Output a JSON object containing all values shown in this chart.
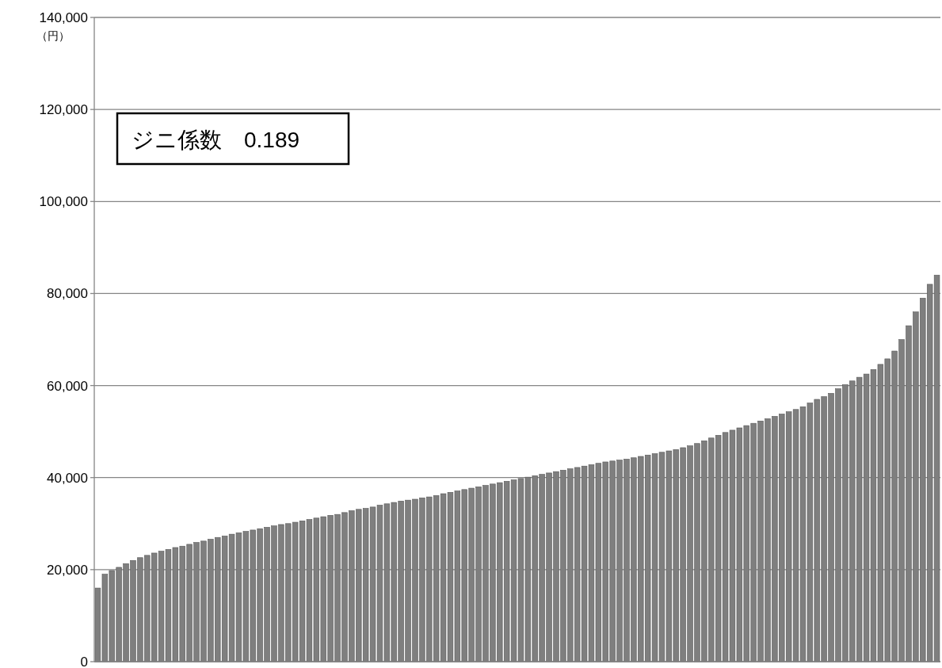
{
  "chart_data": {
    "type": "bar",
    "ylabel": "（円）",
    "annotations": [
      "ジニ係数　0.189"
    ],
    "categories": [
      null,
      null,
      null,
      null,
      null,
      null,
      null,
      null,
      null,
      null,
      null,
      null,
      null,
      null,
      null,
      null,
      null,
      null,
      null,
      null,
      null,
      null,
      null,
      null,
      null,
      null,
      null,
      null,
      null,
      null,
      null,
      null,
      null,
      null,
      null,
      null,
      null,
      null,
      null,
      null,
      null,
      null,
      null,
      null,
      null,
      null,
      null,
      null,
      null,
      null,
      null,
      null,
      null,
      null,
      null,
      null,
      null,
      null,
      null,
      null,
      null,
      null,
      null,
      null,
      null,
      null,
      null,
      null,
      null,
      null,
      null,
      null,
      null,
      null,
      null,
      null,
      null,
      null,
      null,
      null,
      null,
      null,
      null,
      null,
      null,
      null,
      null,
      null,
      null,
      null,
      null,
      null,
      null,
      null,
      null,
      null,
      null,
      null,
      null,
      null,
      null,
      null,
      null,
      null,
      null,
      null,
      null,
      null,
      null,
      null,
      null,
      null,
      null,
      null,
      null,
      null,
      null,
      null,
      null,
      null
    ],
    "values": [
      16000,
      19000,
      19800,
      20500,
      21300,
      22000,
      22600,
      23100,
      23600,
      24000,
      24400,
      24800,
      25100,
      25500,
      25900,
      26200,
      26600,
      27000,
      27300,
      27700,
      28000,
      28300,
      28600,
      28900,
      29200,
      29500,
      29800,
      30000,
      30300,
      30600,
      30900,
      31200,
      31500,
      31800,
      32000,
      32400,
      32800,
      33100,
      33300,
      33600,
      34000,
      34300,
      34600,
      34900,
      35100,
      35300,
      35600,
      35800,
      36100,
      36500,
      36800,
      37100,
      37400,
      37700,
      38000,
      38300,
      38600,
      38900,
      39200,
      39500,
      39800,
      40100,
      40400,
      40700,
      41000,
      41300,
      41600,
      41900,
      42200,
      42500,
      42800,
      43100,
      43400,
      43600,
      43800,
      44000,
      44300,
      44600,
      44900,
      45200,
      45500,
      45800,
      46100,
      46500,
      46900,
      47400,
      48000,
      48600,
      49200,
      49800,
      50300,
      50800,
      51300,
      51800,
      52300,
      52800,
      53300,
      53800,
      54300,
      54800,
      55400,
      56200,
      57000,
      57600,
      58300,
      59300,
      60200,
      61000,
      61800,
      62500,
      63500,
      64600,
      65800,
      67500,
      70000,
      73000,
      76000,
      79000,
      82000,
      84000
    ],
    "color": "#7f7f7f",
    "ylim": [
      0,
      140000
    ],
    "yticks": [
      {
        "value": 0,
        "label": "0"
      },
      {
        "value": 20000,
        "label": "20,000"
      },
      {
        "value": 40000,
        "label": "40,000"
      },
      {
        "value": 60000,
        "label": "60,000"
      },
      {
        "value": 80000,
        "label": "80,000"
      },
      {
        "value": 100000,
        "label": "100,000"
      },
      {
        "value": 120000,
        "label": "120,000"
      },
      {
        "value": 140000,
        "label": "140,000"
      }
    ],
    "grid": "y"
  }
}
